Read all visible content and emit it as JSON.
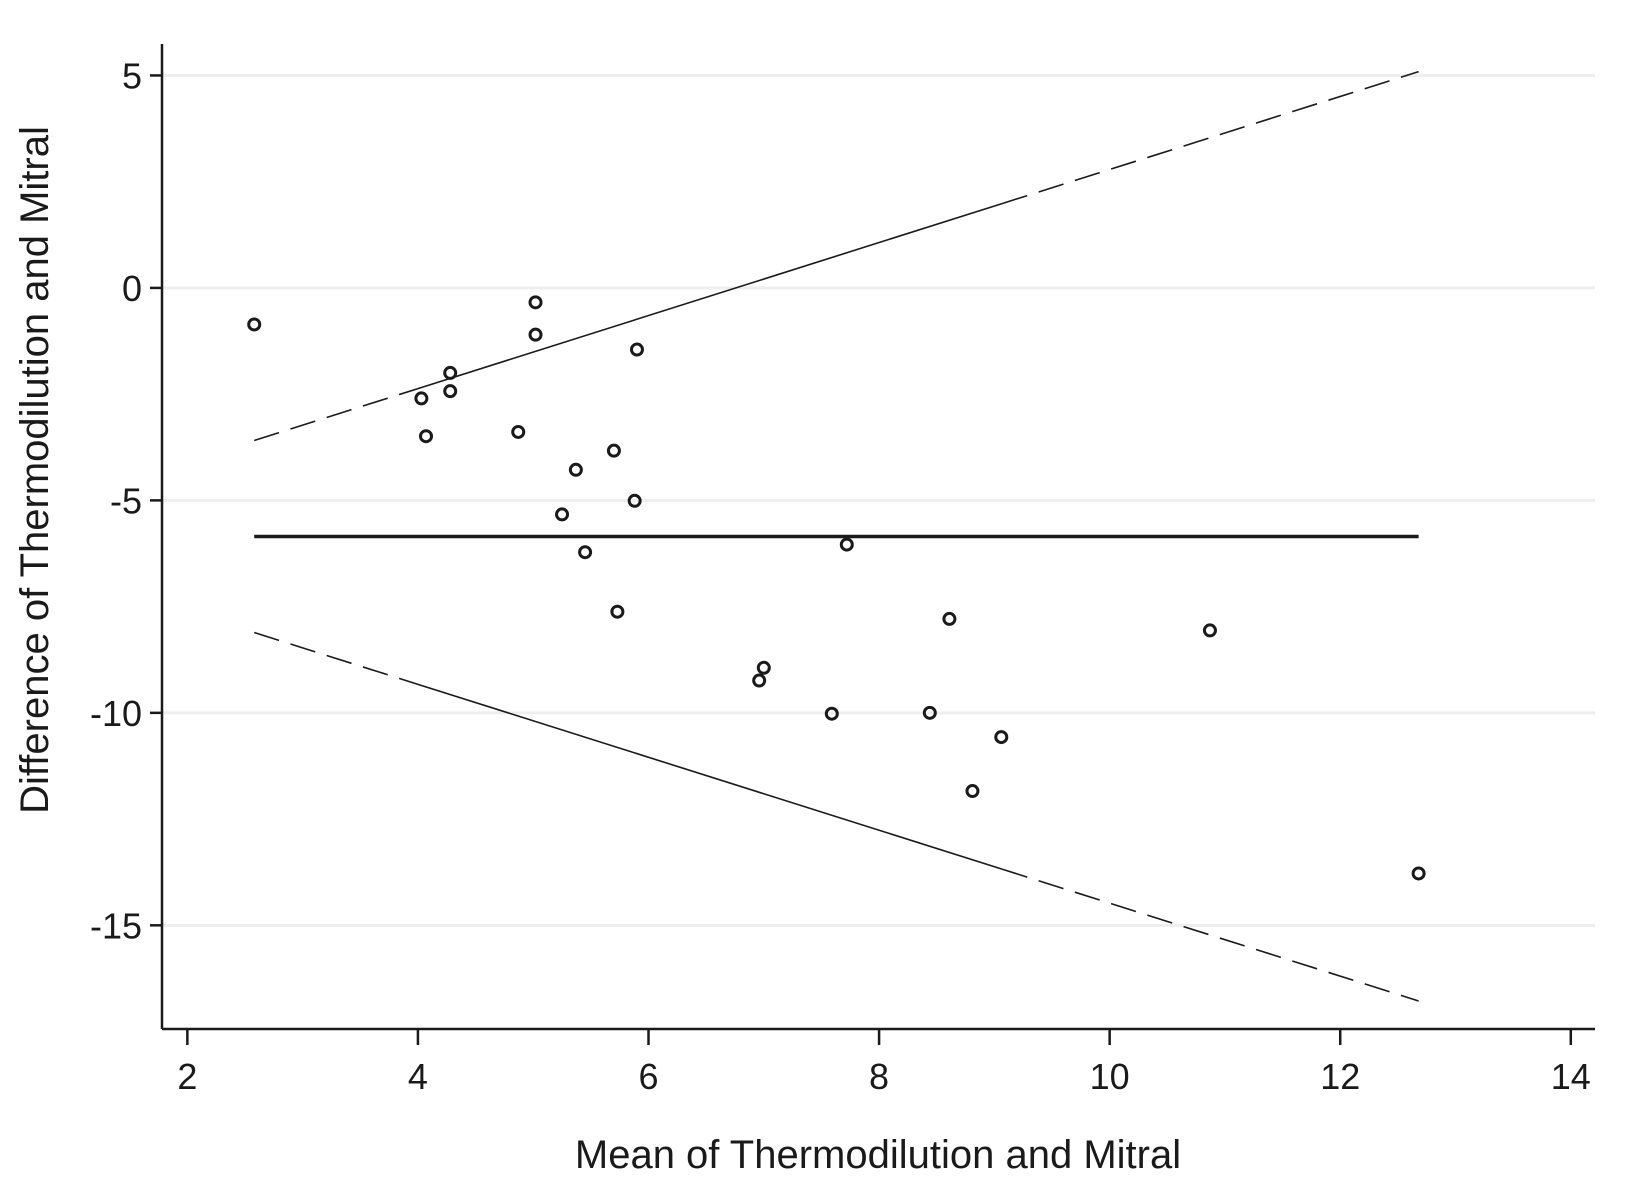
{
  "chart_data": {
    "type": "scatter",
    "title": "",
    "xlabel": "Mean of Thermodilution and Mitral",
    "ylabel": "Difference of Thermodilution and Mitral",
    "xlim": [
      1.78,
      14.21
    ],
    "ylim": [
      -17.44,
      5.74
    ],
    "xticks": [
      2,
      4,
      6,
      8,
      10,
      12,
      14
    ],
    "yticks": [
      5,
      0,
      -5,
      -10,
      -15
    ],
    "grid": "horizontal",
    "points": [
      {
        "x": 2.58,
        "y": -0.86
      },
      {
        "x": 5.02,
        "y": -0.34
      },
      {
        "x": 5.02,
        "y": -1.1
      },
      {
        "x": 5.9,
        "y": -1.45
      },
      {
        "x": 4.28,
        "y": -2.0
      },
      {
        "x": 4.28,
        "y": -2.43
      },
      {
        "x": 4.03,
        "y": -2.6
      },
      {
        "x": 4.07,
        "y": -3.49
      },
      {
        "x": 4.87,
        "y": -3.39
      },
      {
        "x": 5.7,
        "y": -3.83
      },
      {
        "x": 5.37,
        "y": -4.28
      },
      {
        "x": 5.88,
        "y": -5.01
      },
      {
        "x": 5.25,
        "y": -5.33
      },
      {
        "x": 5.45,
        "y": -6.22
      },
      {
        "x": 7.72,
        "y": -6.04
      },
      {
        "x": 5.73,
        "y": -7.62
      },
      {
        "x": 8.61,
        "y": -7.79
      },
      {
        "x": 10.87,
        "y": -8.06
      },
      {
        "x": 7.0,
        "y": -8.94
      },
      {
        "x": 6.96,
        "y": -9.24
      },
      {
        "x": 7.59,
        "y": -10.02
      },
      {
        "x": 8.44,
        "y": -10.0
      },
      {
        "x": 9.06,
        "y": -10.57
      },
      {
        "x": 8.81,
        "y": -11.84
      },
      {
        "x": 12.68,
        "y": -13.78
      }
    ],
    "mean_line": {
      "y": -5.85,
      "x_range": [
        2.58,
        12.68
      ]
    },
    "limit_lines": [
      {
        "from": [
          2.58,
          -3.59
        ],
        "to": [
          12.68,
          5.09
        ],
        "solid_x_range": [
          4.0,
          9.07
        ]
      },
      {
        "from": [
          2.58,
          -8.11
        ],
        "to": [
          12.68,
          -16.78
        ],
        "solid_x_range": [
          4.0,
          9.07
        ]
      }
    ],
    "colors": {
      "marks": "#1a1a1a",
      "grid": "#eeeeee"
    }
  }
}
